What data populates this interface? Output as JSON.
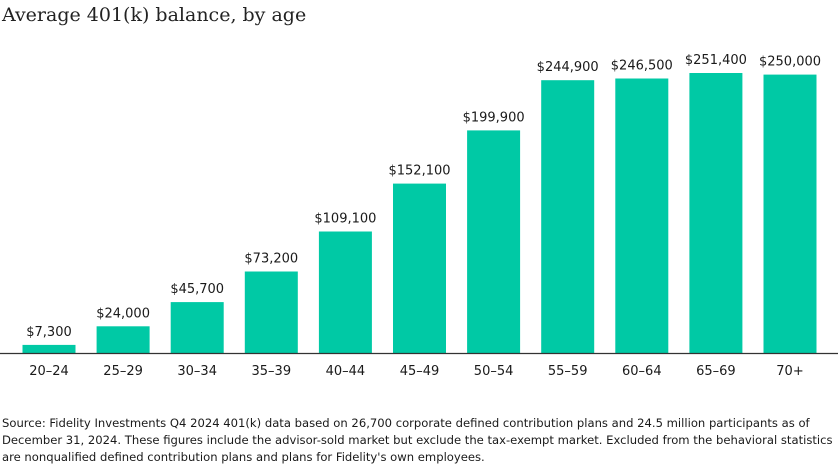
{
  "chart_data": {
    "type": "bar",
    "title": "Average 401(k) balance, by age",
    "xlabel": "",
    "ylabel": "",
    "categories": [
      "20–24",
      "25–29",
      "30–34",
      "35–39",
      "40–44",
      "45–49",
      "50–54",
      "55–59",
      "60–64",
      "65–69",
      "70+"
    ],
    "values": [
      7300,
      24000,
      45700,
      73200,
      109100,
      152100,
      199900,
      244900,
      246500,
      251400,
      250000
    ],
    "data_labels": [
      "$7,300",
      "$24,000",
      "$45,700",
      "$73,200",
      "$109,100",
      "$152,100",
      "$199,900",
      "$244,900",
      "$246,500",
      "$251,400",
      "$250,000"
    ],
    "ylim": [
      0,
      251400
    ],
    "grid": false,
    "bar_color": "#00c9a5",
    "axis_color": "#333333"
  },
  "source_note": "Source: Fidelity Investments Q4 2024 401(k) data based on 26,700 corporate defined contribution plans and 24.5 million participants as of December 31, 2024. These figures include the advisor-sold market but exclude the tax-exempt market. Excluded from the behavioral statistics are nonqualified defined contribution plans and plans for Fidelity's own employees."
}
